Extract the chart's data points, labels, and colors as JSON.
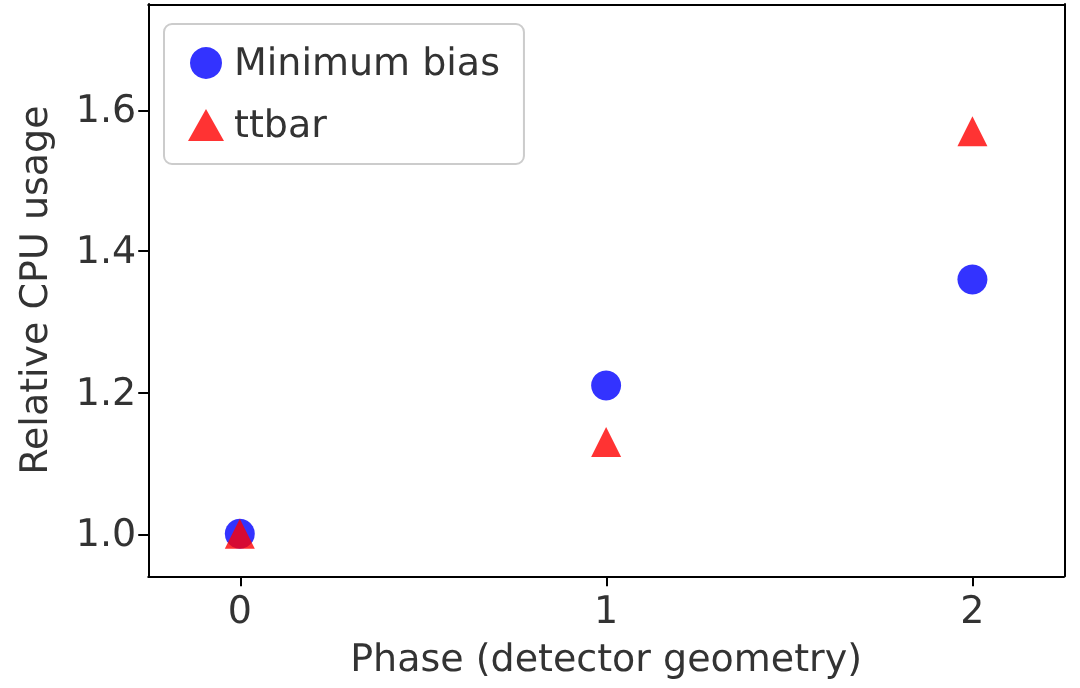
{
  "chart_data": {
    "type": "scatter",
    "xlabel": "Phase (detector geometry)",
    "ylabel": "Relative CPU usage",
    "x": [
      0,
      1,
      2
    ],
    "series": [
      {
        "name": "Minimum bias",
        "color": "#0000ff",
        "marker": "circle",
        "values": [
          1.0,
          1.21,
          1.36
        ]
      },
      {
        "name": "ttbar",
        "color": "#ff0000",
        "marker": "triangle",
        "values": [
          1.0,
          1.13,
          1.57
        ]
      }
    ],
    "xlim": [
      -0.25,
      2.25
    ],
    "xticks": [
      0,
      1,
      2
    ],
    "ylim": [
      0.94,
      1.75
    ],
    "yticks": [
      {
        "value": 1,
        "label": "1.0"
      },
      1.2,
      1.4,
      1.6
    ],
    "legend": "top left",
    "grid": false
  }
}
